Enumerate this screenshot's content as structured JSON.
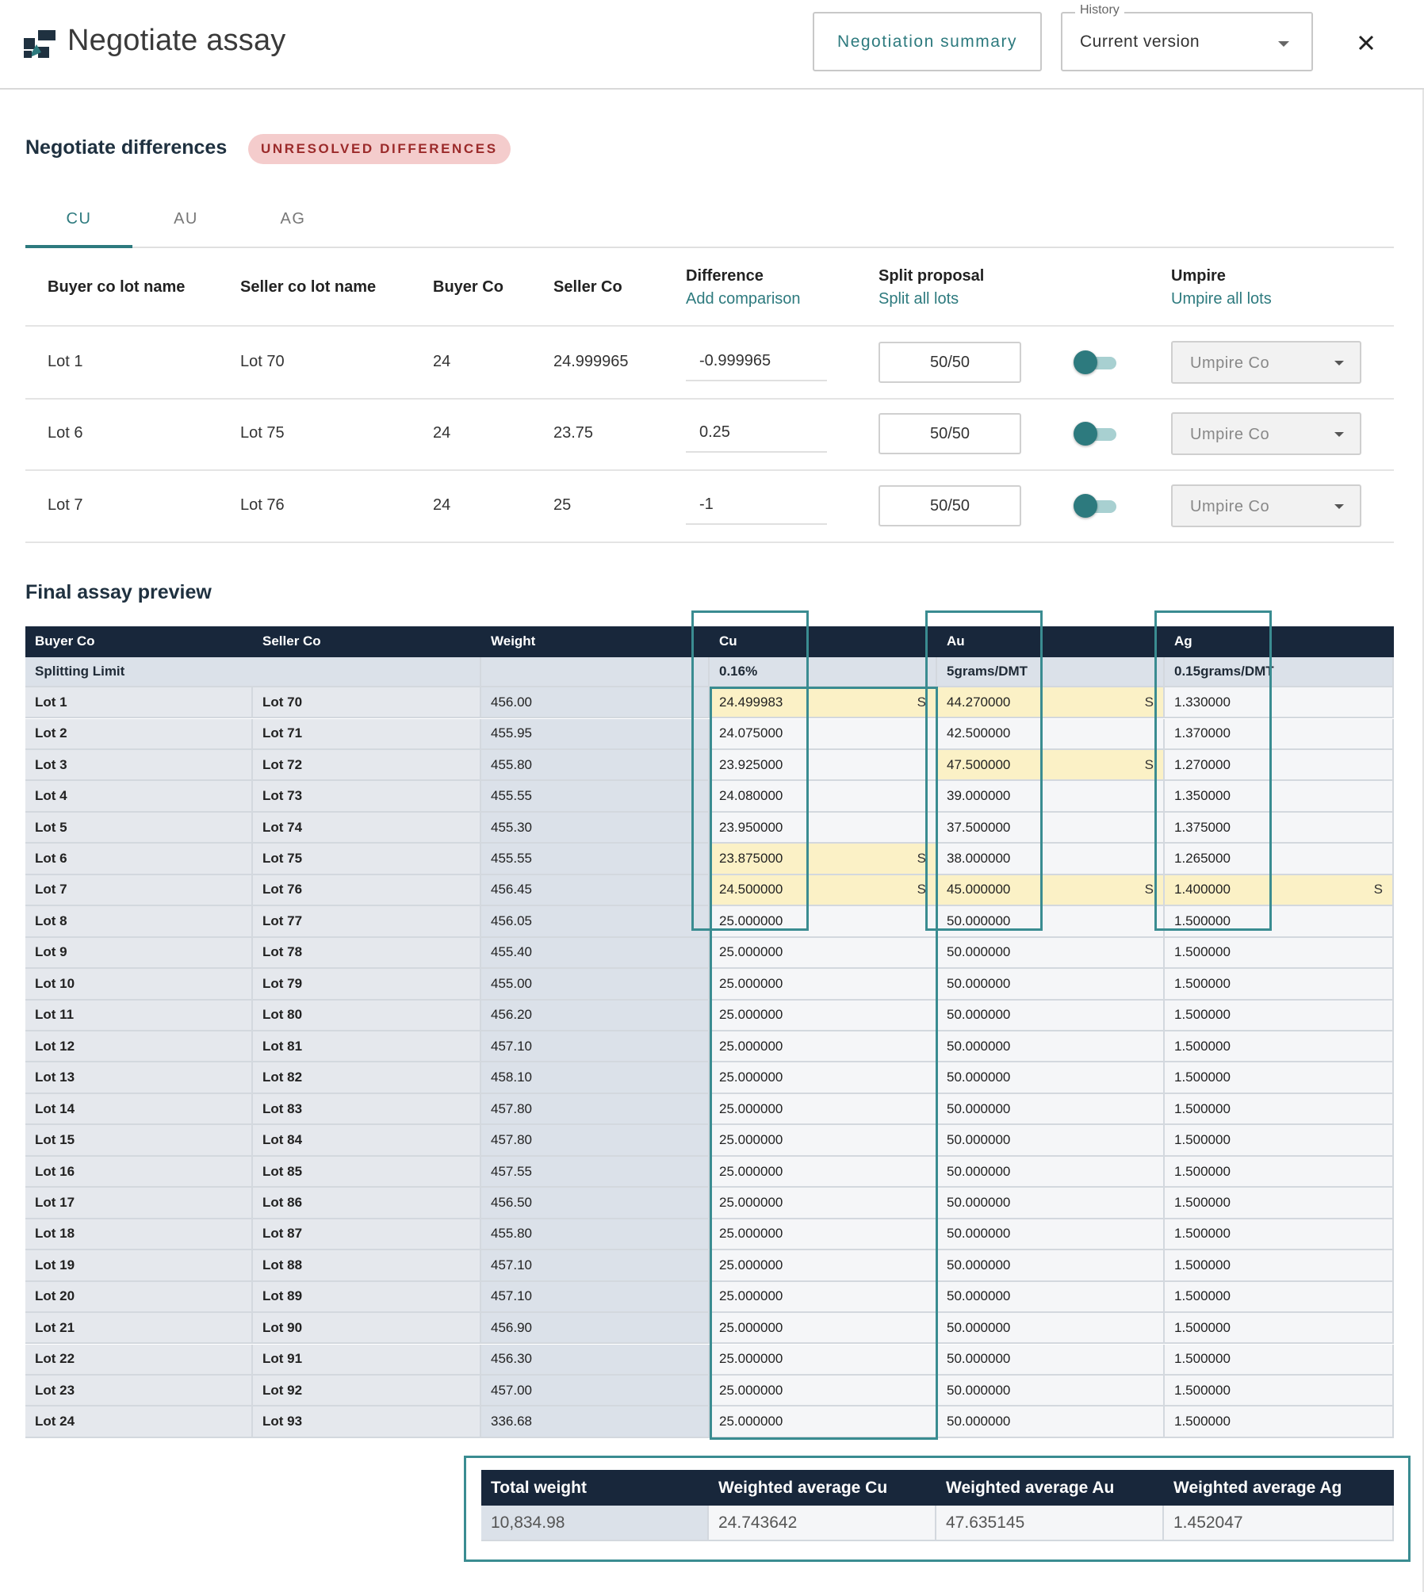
{
  "header": {
    "title": "Negotiate assay",
    "summary_button": "Negotiation summary",
    "history_label": "History",
    "history_value": "Current version"
  },
  "negotiate": {
    "title": "Negotiate differences",
    "badge": "UNRESOLVED DIFFERENCES",
    "tabs": [
      "CU",
      "AU",
      "AG"
    ],
    "active_tab": 0,
    "columns": {
      "buyer_lot": "Buyer co lot name",
      "seller_lot": "Seller co lot name",
      "buyer": "Buyer Co",
      "seller": "Seller Co",
      "difference": "Difference",
      "difference_link": "Add comparison",
      "split": "Split proposal",
      "split_link": "Split all lots",
      "umpire": "Umpire",
      "umpire_link": "Umpire all lots"
    },
    "rows": [
      {
        "buyer_lot": "Lot 1",
        "seller_lot": "Lot 70",
        "buyer": "24",
        "seller": "24.999965",
        "difference": "-0.999965",
        "split": "50/50",
        "umpire": "Umpire Co"
      },
      {
        "buyer_lot": "Lot 6",
        "seller_lot": "Lot 75",
        "buyer": "24",
        "seller": "23.75",
        "difference": "0.25",
        "split": "50/50",
        "umpire": "Umpire Co"
      },
      {
        "buyer_lot": "Lot 7",
        "seller_lot": "Lot 76",
        "buyer": "24",
        "seller": "25",
        "difference": "-1",
        "split": "50/50",
        "umpire": "Umpire Co"
      }
    ]
  },
  "final": {
    "title": "Final assay preview",
    "headers": [
      "Buyer Co",
      "Seller Co",
      "Weight",
      "Cu",
      "Au",
      "Ag"
    ],
    "limit": {
      "label": "Splitting Limit",
      "weight": "",
      "cu": "0.16%",
      "au": "5grams/DMT",
      "ag": "0.15grams/DMT"
    },
    "flag": "S",
    "highlight_color": "#fbf1c6",
    "rows": [
      {
        "b": "Lot 1",
        "s": "Lot 70",
        "w": "456.00",
        "cu": "24.499983",
        "au": "44.270000",
        "ag": "1.330000",
        "f": [
          1,
          1,
          0
        ]
      },
      {
        "b": "Lot 2",
        "s": "Lot 71",
        "w": "455.95",
        "cu": "24.075000",
        "au": "42.500000",
        "ag": "1.370000",
        "f": [
          0,
          0,
          0
        ]
      },
      {
        "b": "Lot 3",
        "s": "Lot 72",
        "w": "455.80",
        "cu": "23.925000",
        "au": "47.500000",
        "ag": "1.270000",
        "f": [
          0,
          1,
          0
        ]
      },
      {
        "b": "Lot 4",
        "s": "Lot 73",
        "w": "455.55",
        "cu": "24.080000",
        "au": "39.000000",
        "ag": "1.350000",
        "f": [
          0,
          0,
          0
        ]
      },
      {
        "b": "Lot 5",
        "s": "Lot 74",
        "w": "455.30",
        "cu": "23.950000",
        "au": "37.500000",
        "ag": "1.375000",
        "f": [
          0,
          0,
          0
        ]
      },
      {
        "b": "Lot 6",
        "s": "Lot 75",
        "w": "455.55",
        "cu": "23.875000",
        "au": "38.000000",
        "ag": "1.265000",
        "f": [
          1,
          0,
          0
        ]
      },
      {
        "b": "Lot 7",
        "s": "Lot 76",
        "w": "456.45",
        "cu": "24.500000",
        "au": "45.000000",
        "ag": "1.400000",
        "f": [
          1,
          1,
          1
        ]
      },
      {
        "b": "Lot 8",
        "s": "Lot 77",
        "w": "456.05",
        "cu": "25.000000",
        "au": "50.000000",
        "ag": "1.500000",
        "f": [
          0,
          0,
          0
        ]
      },
      {
        "b": "Lot 9",
        "s": "Lot 78",
        "w": "455.40",
        "cu": "25.000000",
        "au": "50.000000",
        "ag": "1.500000",
        "f": [
          0,
          0,
          0
        ]
      },
      {
        "b": "Lot 10",
        "s": "Lot 79",
        "w": "455.00",
        "cu": "25.000000",
        "au": "50.000000",
        "ag": "1.500000",
        "f": [
          0,
          0,
          0
        ]
      },
      {
        "b": "Lot 11",
        "s": "Lot 80",
        "w": "456.20",
        "cu": "25.000000",
        "au": "50.000000",
        "ag": "1.500000",
        "f": [
          0,
          0,
          0
        ]
      },
      {
        "b": "Lot 12",
        "s": "Lot 81",
        "w": "457.10",
        "cu": "25.000000",
        "au": "50.000000",
        "ag": "1.500000",
        "f": [
          0,
          0,
          0
        ]
      },
      {
        "b": "Lot 13",
        "s": "Lot 82",
        "w": "458.10",
        "cu": "25.000000",
        "au": "50.000000",
        "ag": "1.500000",
        "f": [
          0,
          0,
          0
        ]
      },
      {
        "b": "Lot 14",
        "s": "Lot 83",
        "w": "457.80",
        "cu": "25.000000",
        "au": "50.000000",
        "ag": "1.500000",
        "f": [
          0,
          0,
          0
        ]
      },
      {
        "b": "Lot 15",
        "s": "Lot 84",
        "w": "457.80",
        "cu": "25.000000",
        "au": "50.000000",
        "ag": "1.500000",
        "f": [
          0,
          0,
          0
        ]
      },
      {
        "b": "Lot 16",
        "s": "Lot 85",
        "w": "457.55",
        "cu": "25.000000",
        "au": "50.000000",
        "ag": "1.500000",
        "f": [
          0,
          0,
          0
        ]
      },
      {
        "b": "Lot 17",
        "s": "Lot 86",
        "w": "456.50",
        "cu": "25.000000",
        "au": "50.000000",
        "ag": "1.500000",
        "f": [
          0,
          0,
          0
        ]
      },
      {
        "b": "Lot 18",
        "s": "Lot 87",
        "w": "455.80",
        "cu": "25.000000",
        "au": "50.000000",
        "ag": "1.500000",
        "f": [
          0,
          0,
          0
        ]
      },
      {
        "b": "Lot 19",
        "s": "Lot 88",
        "w": "457.10",
        "cu": "25.000000",
        "au": "50.000000",
        "ag": "1.500000",
        "f": [
          0,
          0,
          0
        ]
      },
      {
        "b": "Lot 20",
        "s": "Lot 89",
        "w": "457.10",
        "cu": "25.000000",
        "au": "50.000000",
        "ag": "1.500000",
        "f": [
          0,
          0,
          0
        ]
      },
      {
        "b": "Lot 21",
        "s": "Lot 90",
        "w": "456.90",
        "cu": "25.000000",
        "au": "50.000000",
        "ag": "1.500000",
        "f": [
          0,
          0,
          0
        ]
      },
      {
        "b": "Lot 22",
        "s": "Lot 91",
        "w": "456.30",
        "cu": "25.000000",
        "au": "50.000000",
        "ag": "1.500000",
        "f": [
          0,
          0,
          0
        ]
      },
      {
        "b": "Lot 23",
        "s": "Lot 92",
        "w": "457.00",
        "cu": "25.000000",
        "au": "50.000000",
        "ag": "1.500000",
        "f": [
          0,
          0,
          0
        ]
      },
      {
        "b": "Lot 24",
        "s": "Lot 93",
        "w": "336.68",
        "cu": "25.000000",
        "au": "50.000000",
        "ag": "1.500000",
        "f": [
          0,
          0,
          0
        ]
      }
    ]
  },
  "totals": {
    "headers": [
      "Total weight",
      "Weighted average Cu",
      "Weighted average Au",
      "Weighted average Ag"
    ],
    "values": [
      "10,834.98",
      "24.743642",
      "47.635145",
      "1.452047"
    ]
  },
  "colors": {
    "accent": "#2d7a7e",
    "dark_header": "#18273b",
    "badge_bg": "#f4cccc",
    "badge_text": "#9b2a2a"
  }
}
